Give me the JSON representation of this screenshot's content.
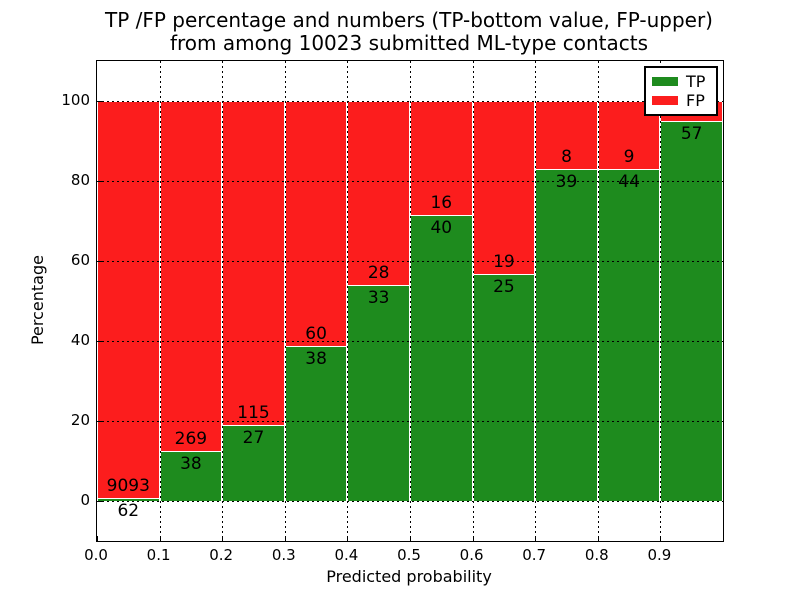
{
  "title": {
    "line1": "TP /FP percentage and numbers (TP-bottom value, FP-upper)",
    "line2": "from among 10023 submitted ML-type contacts"
  },
  "chart_data": {
    "type": "bar",
    "stacked": true,
    "xlabel": "Predicted probability",
    "ylabel": "Percentage",
    "xlim": [
      0.0,
      1.0
    ],
    "ylim": [
      -10,
      110
    ],
    "grid": true,
    "grid_style": "dotted",
    "x_tick_labels": [
      "0.0",
      "0.1",
      "0.2",
      "0.3",
      "0.4",
      "0.5",
      "0.6",
      "0.7",
      "0.8",
      "0.9"
    ],
    "y_ticks": [
      0,
      20,
      40,
      60,
      80,
      100
    ],
    "bin_width": 0.1,
    "total_contacts": 10023,
    "legend": {
      "position": "upper right",
      "entries": [
        {
          "label": "TP",
          "color": "#1e8b1e"
        },
        {
          "label": "FP",
          "color": "#fc1d1d"
        }
      ]
    },
    "series_note": "Each bar stacks TP (green, bottom) and FP (red, top) to 100%",
    "bars": [
      {
        "bin": "0.0-0.1",
        "tp_percent": 0.68,
        "tp_count": 62,
        "fp_count": 9093
      },
      {
        "bin": "0.1-0.2",
        "tp_percent": 12.38,
        "tp_count": 38,
        "fp_count": 269
      },
      {
        "bin": "0.2-0.3",
        "tp_percent": 19.01,
        "tp_count": 27,
        "fp_count": 115
      },
      {
        "bin": "0.3-0.4",
        "tp_percent": 38.78,
        "tp_count": 38,
        "fp_count": 60
      },
      {
        "bin": "0.4-0.5",
        "tp_percent": 54.1,
        "tp_count": 33,
        "fp_count": 28
      },
      {
        "bin": "0.5-0.6",
        "tp_percent": 71.43,
        "tp_count": 40,
        "fp_count": 16
      },
      {
        "bin": "0.6-0.7",
        "tp_percent": 56.82,
        "tp_count": 25,
        "fp_count": 19
      },
      {
        "bin": "0.7-0.8",
        "tp_percent": 82.98,
        "tp_count": 39,
        "fp_count": 8
      },
      {
        "bin": "0.8-0.9",
        "tp_percent": 83.02,
        "tp_count": 44,
        "fp_count": 9
      },
      {
        "bin": "0.9-1.0",
        "tp_percent": 95.0,
        "tp_count": 57,
        "fp_count": null
      }
    ]
  },
  "colors": {
    "tp": "#1e8b1e",
    "fp": "#fc1d1d",
    "grid": "#000000",
    "bar_edge": "#ffffff",
    "background": "#ffffff"
  }
}
